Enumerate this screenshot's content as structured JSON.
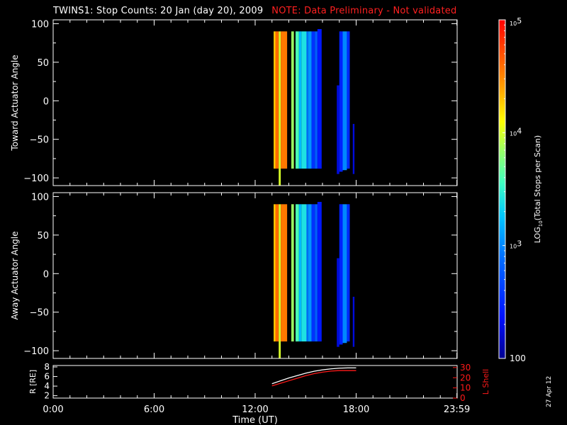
{
  "title": {
    "main": "TWINS1: Stop Counts: 20 Jan (day  20), 2009",
    "note": "NOTE: Data Preliminary - Not validated"
  },
  "date_stamp": "27 Apr 12",
  "colors": {
    "background": "#000000",
    "axes": "#ffffff",
    "note": "#ff2020",
    "r_curve": "#ffffff",
    "lshell_curve": "#ff1a1a"
  },
  "chart_data": [
    {
      "type": "heatmap",
      "name": "toward",
      "ylabel": "Toward Actuator Angle",
      "xlim": [
        0,
        24
      ],
      "ylim": [
        -110,
        105
      ],
      "yticks": [
        100,
        50,
        0,
        -50,
        -100
      ],
      "bands": [
        {
          "t0": 13.1,
          "t1": 13.2,
          "lo": -88,
          "hi": 90,
          "log10": 4.25
        },
        {
          "t0": 13.2,
          "t1": 13.4,
          "lo": -88,
          "hi": 90,
          "log10": 4.6
        },
        {
          "t0": 13.4,
          "t1": 13.52,
          "lo": -110,
          "hi": 90,
          "log10": 4.0
        },
        {
          "t0": 13.52,
          "t1": 13.9,
          "lo": -88,
          "hi": 90,
          "log10": 4.55
        },
        {
          "t0": 14.15,
          "t1": 14.3,
          "lo": -88,
          "hi": 90,
          "log10": 3.85
        },
        {
          "t0": 14.4,
          "t1": 14.6,
          "lo": -88,
          "hi": 90,
          "log10": 3.6
        },
        {
          "t0": 14.6,
          "t1": 14.75,
          "lo": -88,
          "hi": 90,
          "log10": 3.2
        },
        {
          "t0": 14.75,
          "t1": 15.05,
          "lo": -88,
          "hi": 90,
          "log10": 3.4
        },
        {
          "t0": 15.05,
          "t1": 15.15,
          "lo": -88,
          "hi": 90,
          "log10": 2.9
        },
        {
          "t0": 15.15,
          "t1": 15.35,
          "lo": -88,
          "hi": 90,
          "log10": 3.05
        },
        {
          "t0": 15.35,
          "t1": 15.55,
          "lo": -88,
          "hi": 90,
          "log10": 2.55
        },
        {
          "t0": 15.55,
          "t1": 15.7,
          "lo": -88,
          "hi": 90,
          "log10": 2.8
        },
        {
          "t0": 15.7,
          "t1": 15.95,
          "lo": -88,
          "hi": 93,
          "log10": 2.4
        },
        {
          "t0": 16.85,
          "t1": 17.0,
          "lo": -95,
          "hi": 20,
          "log10": 2.25
        },
        {
          "t0": 17.0,
          "t1": 17.2,
          "lo": -92,
          "hi": 90,
          "log10": 2.45
        },
        {
          "t0": 17.2,
          "t1": 17.45,
          "lo": -90,
          "hi": 90,
          "log10": 3.0
        },
        {
          "t0": 17.45,
          "t1": 17.62,
          "lo": -88,
          "hi": 90,
          "log10": 2.5
        },
        {
          "t0": 17.8,
          "t1": 17.9,
          "lo": -95,
          "hi": -30,
          "log10": 2.25
        }
      ]
    },
    {
      "type": "heatmap",
      "name": "away",
      "ylabel": "Away Actuator Angle",
      "xlim": [
        0,
        24
      ],
      "ylim": [
        -110,
        105
      ],
      "yticks": [
        100,
        50,
        0,
        -50,
        -100
      ],
      "bands": [
        {
          "t0": 13.1,
          "t1": 13.2,
          "lo": -88,
          "hi": 90,
          "log10": 4.25
        },
        {
          "t0": 13.2,
          "t1": 13.4,
          "lo": -88,
          "hi": 90,
          "log10": 4.6
        },
        {
          "t0": 13.4,
          "t1": 13.52,
          "lo": -110,
          "hi": 90,
          "log10": 4.0
        },
        {
          "t0": 13.52,
          "t1": 13.9,
          "lo": -88,
          "hi": 90,
          "log10": 4.55
        },
        {
          "t0": 14.15,
          "t1": 14.3,
          "lo": -88,
          "hi": 90,
          "log10": 3.85
        },
        {
          "t0": 14.4,
          "t1": 14.6,
          "lo": -88,
          "hi": 90,
          "log10": 3.6
        },
        {
          "t0": 14.6,
          "t1": 14.75,
          "lo": -88,
          "hi": 90,
          "log10": 3.2
        },
        {
          "t0": 14.75,
          "t1": 15.05,
          "lo": -88,
          "hi": 90,
          "log10": 3.4
        },
        {
          "t0": 15.05,
          "t1": 15.15,
          "lo": -88,
          "hi": 90,
          "log10": 2.9
        },
        {
          "t0": 15.15,
          "t1": 15.35,
          "lo": -88,
          "hi": 90,
          "log10": 3.05
        },
        {
          "t0": 15.35,
          "t1": 15.55,
          "lo": -88,
          "hi": 90,
          "log10": 2.55
        },
        {
          "t0": 15.55,
          "t1": 15.7,
          "lo": -88,
          "hi": 90,
          "log10": 2.8
        },
        {
          "t0": 15.7,
          "t1": 15.95,
          "lo": -88,
          "hi": 93,
          "log10": 2.4
        },
        {
          "t0": 16.85,
          "t1": 17.0,
          "lo": -95,
          "hi": 20,
          "log10": 2.25
        },
        {
          "t0": 17.0,
          "t1": 17.2,
          "lo": -92,
          "hi": 90,
          "log10": 2.45
        },
        {
          "t0": 17.2,
          "t1": 17.45,
          "lo": -90,
          "hi": 90,
          "log10": 3.0
        },
        {
          "t0": 17.45,
          "t1": 17.62,
          "lo": -88,
          "hi": 90,
          "log10": 2.5
        },
        {
          "t0": 17.8,
          "t1": 17.9,
          "lo": -95,
          "hi": -30,
          "log10": 2.25
        }
      ]
    },
    {
      "type": "line",
      "name": "orbit",
      "ylabel": "R [RE]",
      "y2label": "L Shell",
      "xlabel": "Time (UT)",
      "xlim": [
        0,
        24
      ],
      "xticks": [
        {
          "v": 0,
          "label": "0:00"
        },
        {
          "v": 6,
          "label": "6:00"
        },
        {
          "v": 12,
          "label": "12:00"
        },
        {
          "v": 18,
          "label": "18:00"
        },
        {
          "v": 23.983,
          "label": "23:59"
        }
      ],
      "ylim": [
        1.5,
        8.3
      ],
      "yticks": [
        2,
        4,
        6,
        8
      ],
      "y2lim": [
        0,
        32
      ],
      "y2ticks": [
        0,
        10,
        20,
        30
      ],
      "series": [
        {
          "axis": "left",
          "color": "#ffffff",
          "x": [
            13.0,
            13.5,
            14.0,
            14.5,
            15.0,
            15.5,
            16.0,
            16.5,
            17.0,
            17.5,
            18.0
          ],
          "y": [
            4.5,
            5.1,
            5.7,
            6.2,
            6.7,
            7.1,
            7.4,
            7.6,
            7.75,
            7.8,
            7.8
          ]
        },
        {
          "axis": "right",
          "color": "#ff1a1a",
          "x": [
            13.0,
            13.5,
            14.0,
            14.5,
            15.0,
            15.5,
            16.0,
            16.5,
            17.0,
            17.5,
            18.0
          ],
          "y": [
            12,
            14.5,
            17,
            19.5,
            22,
            24,
            25.5,
            26.5,
            27,
            27,
            27
          ]
        }
      ]
    }
  ],
  "colorbar": {
    "label": "LOG10(Total Stops per Scan)",
    "label_main": "LOG",
    "label_sub": "10",
    "label_rest": "(Total Stops per Scan)",
    "range_log10": [
      2,
      5
    ],
    "ticks": [
      {
        "v": 5,
        "base": "10",
        "exp": "5"
      },
      {
        "v": 4,
        "base": "10",
        "exp": "4"
      },
      {
        "v": 3,
        "base": "10",
        "exp": "3"
      },
      {
        "v": 2,
        "base": "100",
        "exp": ""
      }
    ]
  }
}
